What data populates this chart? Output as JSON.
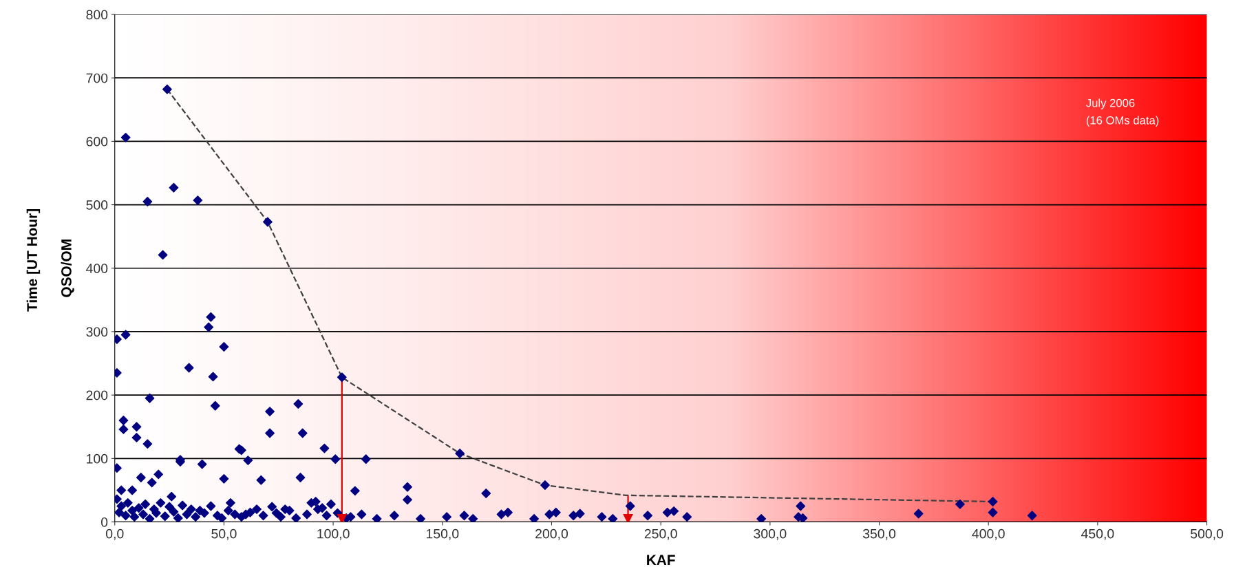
{
  "chart_data": {
    "type": "scatter",
    "xlabel": "KAF",
    "ylabel": "QSO/OM",
    "annotations": [
      "July 2006",
      "(16 OMs data)",
      "Time [UT Hour]"
    ],
    "xlim": [
      0,
      500
    ],
    "ylim": [
      0,
      800
    ],
    "xticks": [
      {
        "value": 0,
        "label": "0,0"
      },
      {
        "value": 50,
        "label": "50,0"
      },
      {
        "value": 100,
        "label": "100,0"
      },
      {
        "value": 150,
        "label": "150,0"
      },
      {
        "value": 200,
        "label": "200,0"
      },
      {
        "value": 250,
        "label": "250,0"
      },
      {
        "value": 300,
        "label": "300,0"
      },
      {
        "value": 350,
        "label": "350,0"
      },
      {
        "value": 400,
        "label": "400,0"
      },
      {
        "value": 450,
        "label": "450,0"
      },
      {
        "value": 500,
        "label": "500,0"
      }
    ],
    "yticks": [
      0,
      100,
      200,
      300,
      400,
      500,
      600,
      700,
      800
    ],
    "grid": "y",
    "legend": false,
    "marker": "diamond",
    "series": [
      {
        "color": "#000080",
        "x": [
          24,
          5,
          15,
          27,
          38,
          22,
          70,
          43,
          44,
          50,
          1,
          5,
          1,
          34,
          45,
          46,
          104,
          16,
          71,
          71,
          84,
          86,
          4,
          4,
          10,
          10,
          15,
          30,
          1,
          1,
          57,
          58,
          61,
          96,
          101,
          115,
          158,
          197,
          170,
          134,
          110,
          85,
          67,
          50,
          40,
          30,
          20,
          12,
          8,
          3,
          26,
          17,
          53,
          60,
          78,
          92,
          95,
          2,
          3,
          5,
          6,
          8,
          9,
          11,
          13,
          14,
          16,
          18,
          19,
          21,
          23,
          25,
          27,
          29,
          31,
          33,
          35,
          37,
          39,
          41,
          44,
          47,
          49,
          52,
          55,
          58,
          62,
          65,
          68,
          72,
          74,
          76,
          80,
          83,
          88,
          90,
          93,
          97,
          99,
          102,
          106,
          108,
          113,
          120,
          128,
          134,
          140,
          152,
          160,
          164,
          177,
          180,
          192,
          199,
          202,
          210,
          213,
          223,
          228,
          236,
          244,
          253,
          256,
          262,
          296,
          313,
          315,
          314,
          368,
          387,
          402,
          402,
          420
        ],
        "values": [
          682,
          606,
          505,
          527,
          507,
          421,
          473,
          307,
          323,
          276,
          288,
          295,
          235,
          243,
          229,
          183,
          228,
          195,
          174,
          140,
          186,
          140,
          160,
          146,
          150,
          133,
          123,
          95,
          85,
          36,
          115,
          113,
          97,
          116,
          99,
          99,
          108,
          58,
          45,
          55,
          49,
          70,
          66,
          68,
          91,
          98,
          75,
          70,
          50,
          50,
          40,
          62,
          30,
          12,
          20,
          32,
          22,
          15,
          25,
          10,
          30,
          18,
          8,
          22,
          12,
          28,
          5,
          20,
          14,
          30,
          9,
          24,
          16,
          6,
          26,
          12,
          20,
          8,
          18,
          14,
          25,
          10,
          6,
          18,
          12,
          8,
          15,
          20,
          10,
          24,
          14,
          8,
          18,
          6,
          12,
          30,
          20,
          10,
          28,
          14,
          6,
          8,
          12,
          5,
          10,
          35,
          5,
          8,
          10,
          5,
          12,
          15,
          5,
          12,
          15,
          10,
          13,
          8,
          5,
          25,
          10,
          15,
          17,
          8,
          5,
          8,
          6,
          25,
          13,
          28,
          32,
          15,
          10
        ]
      },
      {
        "type": "line",
        "color": "#404040",
        "line_style": "dashed",
        "marker": "none",
        "x": [
          24,
          70,
          104,
          158,
          197,
          234,
          402
        ],
        "values": [
          682,
          473,
          228,
          108,
          58,
          42,
          32
        ]
      },
      {
        "type": "line",
        "color": "#e00000",
        "line_style": "solid",
        "marker": "triangle_down",
        "x": [
          104,
          104
        ],
        "values": [
          228,
          5
        ]
      },
      {
        "type": "line",
        "color": "#e00000",
        "line_style": "solid",
        "marker": "triangle_down",
        "x": [
          235,
          235
        ],
        "values": [
          40,
          5
        ]
      }
    ]
  }
}
